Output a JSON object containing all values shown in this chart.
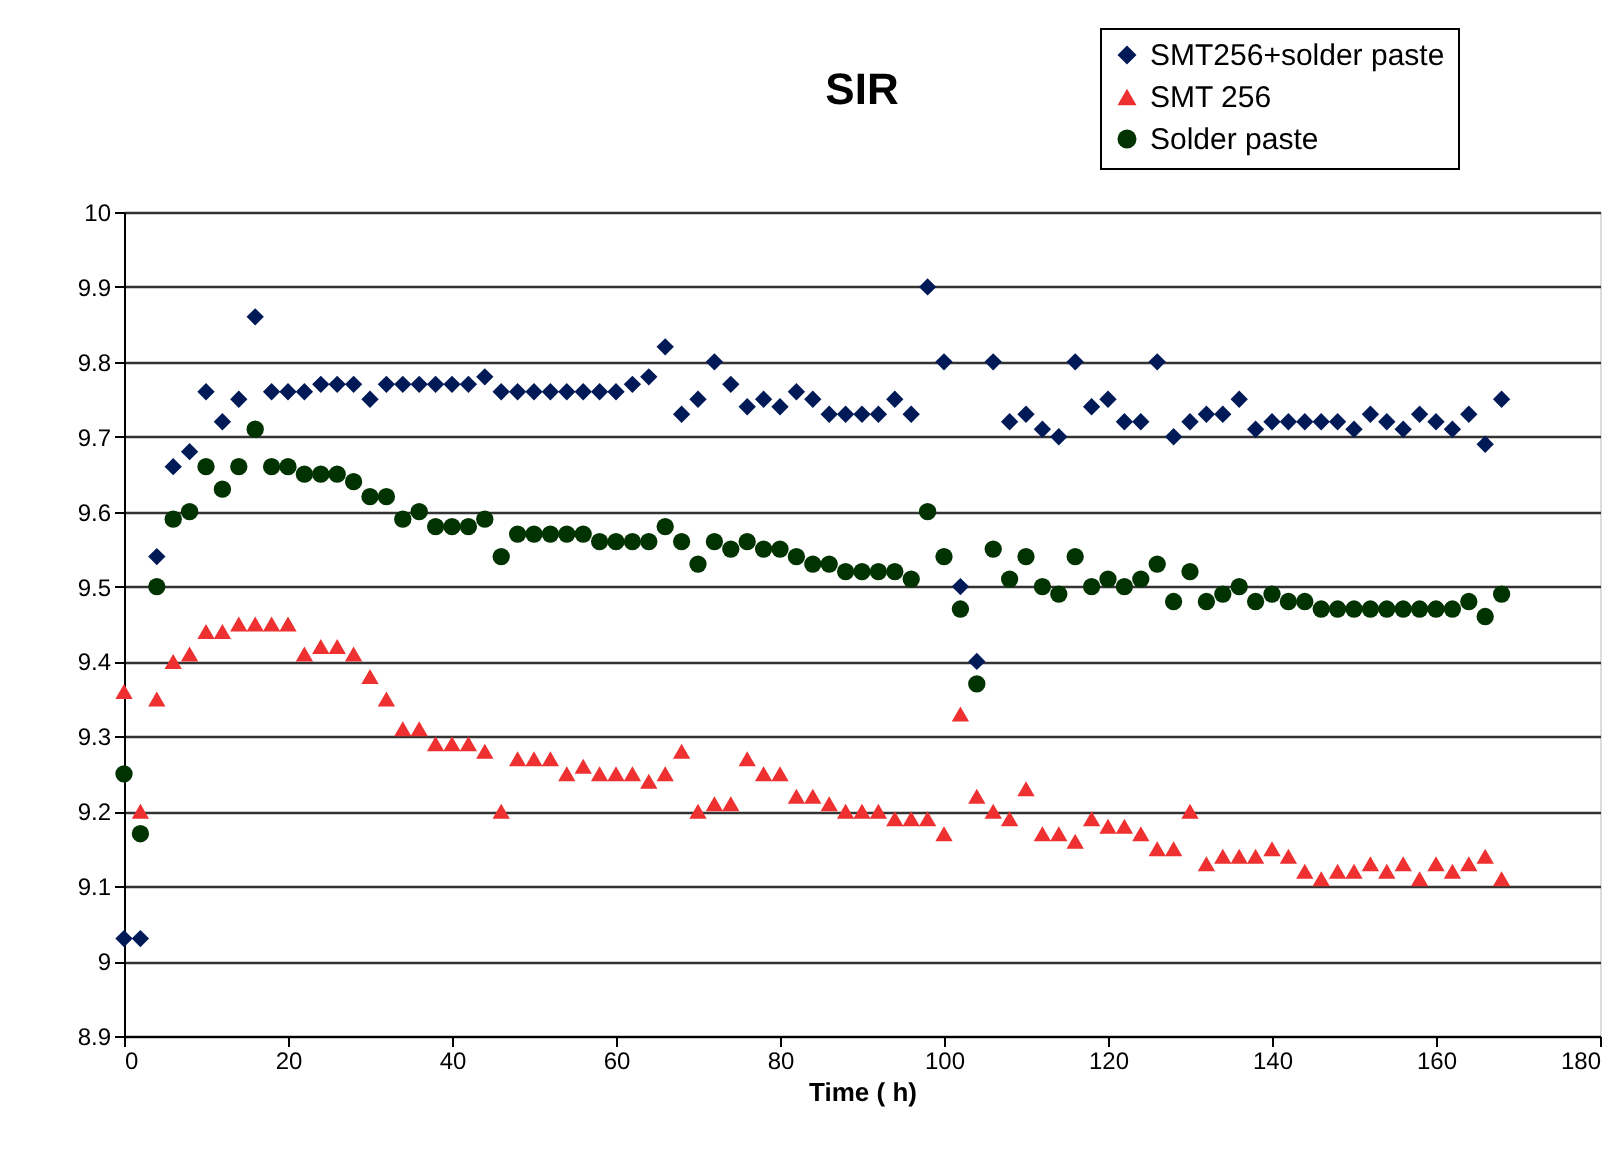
{
  "chart_data": {
    "type": "scatter",
    "title": "SIR",
    "xlabel": "Time ( h)",
    "xlim": [
      0,
      180
    ],
    "xticks": [
      0,
      20,
      40,
      60,
      80,
      100,
      120,
      140,
      160,
      180
    ],
    "ylim": [
      8.9,
      10
    ],
    "yticks": [
      8.9,
      9,
      9.1,
      9.2,
      9.3,
      9.4,
      9.5,
      9.6,
      9.7,
      9.8,
      9.9,
      10
    ],
    "grid": "y",
    "legend": "top right",
    "x": [
      0,
      2,
      4,
      6,
      8,
      10,
      12,
      14,
      16,
      18,
      20,
      22,
      24,
      26,
      28,
      30,
      32,
      34,
      36,
      38,
      40,
      42,
      44,
      46,
      48,
      50,
      52,
      54,
      56,
      58,
      60,
      62,
      64,
      66,
      68,
      70,
      72,
      74,
      76,
      78,
      80,
      82,
      84,
      86,
      88,
      90,
      92,
      94,
      96,
      98,
      100,
      102,
      104,
      106,
      108,
      110,
      112,
      114,
      116,
      118,
      120,
      122,
      124,
      126,
      128,
      130,
      132,
      134,
      136,
      138,
      140,
      142,
      144,
      146,
      148,
      150,
      152,
      154,
      156,
      158,
      160,
      162,
      164,
      166,
      168
    ],
    "series": [
      {
        "name": "SMT256+solder paste",
        "color": "#001a57",
        "marker": "diamond",
        "values": [
          9.03,
          9.03,
          9.54,
          9.66,
          9.68,
          9.76,
          9.72,
          9.75,
          9.86,
          9.76,
          9.76,
          9.76,
          9.77,
          9.77,
          9.77,
          9.75,
          9.77,
          9.77,
          9.77,
          9.77,
          9.77,
          9.77,
          9.78,
          9.76,
          9.76,
          9.76,
          9.76,
          9.76,
          9.76,
          9.76,
          9.76,
          9.77,
          9.78,
          9.82,
          9.73,
          9.75,
          9.8,
          9.77,
          9.74,
          9.75,
          9.74,
          9.76,
          9.75,
          9.73,
          9.73,
          9.73,
          9.73,
          9.75,
          9.73,
          9.9,
          9.8,
          9.5,
          9.4,
          9.8,
          9.72,
          9.73,
          9.71,
          9.7,
          9.8,
          9.74,
          9.75,
          9.72,
          9.72,
          9.8,
          9.7,
          9.72,
          9.73,
          9.73,
          9.75,
          9.71,
          9.72,
          9.72,
          9.72,
          9.72,
          9.72,
          9.71,
          9.73,
          9.72,
          9.71,
          9.73,
          9.72,
          9.71,
          9.73,
          9.69,
          9.75
        ]
      },
      {
        "name": "SMT 256",
        "color": "#ee3030",
        "marker": "triangle",
        "values": [
          9.36,
          9.2,
          9.35,
          9.4,
          9.41,
          9.44,
          9.44,
          9.45,
          9.45,
          9.45,
          9.45,
          9.41,
          9.42,
          9.42,
          9.41,
          9.38,
          9.35,
          9.31,
          9.31,
          9.29,
          9.29,
          9.29,
          9.28,
          9.2,
          9.27,
          9.27,
          9.27,
          9.25,
          9.26,
          9.25,
          9.25,
          9.25,
          9.24,
          9.25,
          9.28,
          9.2,
          9.21,
          9.21,
          9.27,
          9.25,
          9.25,
          9.22,
          9.22,
          9.21,
          9.2,
          9.2,
          9.2,
          9.19,
          9.19,
          9.19,
          9.17,
          9.33,
          9.22,
          9.2,
          9.19,
          9.23,
          9.17,
          9.17,
          9.16,
          9.19,
          9.18,
          9.18,
          9.17,
          9.15,
          9.15,
          9.2,
          9.13,
          9.14,
          9.14,
          9.14,
          9.15,
          9.14,
          9.12,
          9.11,
          9.12,
          9.12,
          9.13,
          9.12,
          9.13,
          9.11,
          9.13,
          9.12,
          9.13,
          9.14,
          9.11
        ]
      },
      {
        "name": "Solder paste",
        "color": "#003300",
        "marker": "circle",
        "values": [
          9.25,
          9.17,
          9.5,
          9.59,
          9.6,
          9.66,
          9.63,
          9.66,
          9.71,
          9.66,
          9.66,
          9.65,
          9.65,
          9.65,
          9.64,
          9.62,
          9.62,
          9.59,
          9.6,
          9.58,
          9.58,
          9.58,
          9.59,
          9.54,
          9.57,
          9.57,
          9.57,
          9.57,
          9.57,
          9.56,
          9.56,
          9.56,
          9.56,
          9.58,
          9.56,
          9.53,
          9.56,
          9.55,
          9.56,
          9.55,
          9.55,
          9.54,
          9.53,
          9.53,
          9.52,
          9.52,
          9.52,
          9.52,
          9.51,
          9.6,
          9.54,
          9.47,
          9.37,
          9.55,
          9.51,
          9.54,
          9.5,
          9.49,
          9.54,
          9.5,
          9.51,
          9.5,
          9.51,
          9.53,
          9.48,
          9.52,
          9.48,
          9.49,
          9.5,
          9.48,
          9.49,
          9.48,
          9.48,
          9.47,
          9.47,
          9.47,
          9.47,
          9.47,
          9.47,
          9.47,
          9.47,
          9.47,
          9.48,
          9.46,
          9.49
        ]
      }
    ]
  }
}
